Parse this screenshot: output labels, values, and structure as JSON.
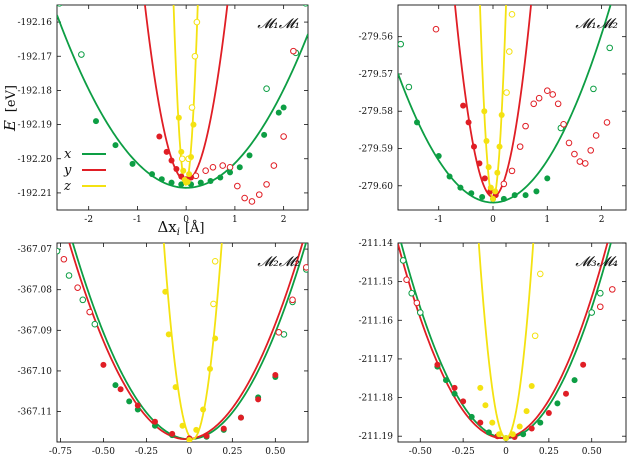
{
  "figure": {
    "ylabel_symbol": "E",
    "ylabel_unit": "[eV]",
    "xlabel_symbol": "Δx",
    "xlabel_sub": "i",
    "xlabel_unit": "[Å]"
  },
  "legend": [
    {
      "label": "x",
      "color": "#0d9e44"
    },
    {
      "label": "y",
      "color": "#e01e25"
    },
    {
      "label": "z",
      "color": "#f4e211"
    }
  ],
  "chart_data": [
    {
      "type": "scatter",
      "title": "𝓜₁𝓜₁",
      "xlim": [
        -2.65,
        2.5
      ],
      "ylim": [
        -192.215,
        -192.155
      ],
      "xticks": [
        -2,
        -1,
        0,
        1,
        2
      ],
      "xtick_labels": [
        "-2",
        "-1",
        "0",
        "1",
        "2"
      ],
      "yticks": [
        -192.16,
        -192.17,
        -192.18,
        -192.19,
        -192.2,
        -192.21
      ],
      "ytick_labels": [
        "-192.16",
        "-192.17",
        "-192.18",
        "-192.19",
        "-192.20",
        "-192.21"
      ],
      "fits": [
        {
          "series": "x",
          "x0": 0.0,
          "e0": -192.2085,
          "k": 0.0072
        },
        {
          "series": "y",
          "x0": 0.0,
          "e0": -192.2065,
          "k": 0.072
        },
        {
          "series": "z",
          "x0": -0.01,
          "e0": -192.2075,
          "k": 0.85
        }
      ],
      "filled": {
        "x": [
          [
            -1.85,
            -192.189
          ],
          [
            -1.45,
            -192.196
          ],
          [
            -1.1,
            -192.2015
          ],
          [
            -0.7,
            -192.2045
          ],
          [
            -0.5,
            -192.206
          ],
          [
            -0.3,
            -192.207
          ],
          [
            -0.1,
            -192.2075
          ],
          [
            0.1,
            -192.2075
          ],
          [
            0.3,
            -192.207
          ],
          [
            0.5,
            -192.2065
          ],
          [
            0.7,
            -192.2055
          ],
          [
            0.9,
            -192.204
          ],
          [
            1.1,
            -192.2025
          ],
          [
            1.3,
            -192.199
          ],
          [
            1.6,
            -192.193
          ],
          [
            1.9,
            -192.1865
          ],
          [
            2.0,
            -192.185
          ]
        ],
        "y": [
          [
            -0.55,
            -192.1935
          ],
          [
            -0.4,
            -192.198
          ],
          [
            -0.3,
            -192.2005
          ],
          [
            -0.2,
            -192.203
          ],
          [
            -0.1,
            -192.2052
          ],
          [
            0.0,
            -192.206
          ],
          [
            0.1,
            -192.2055
          ]
        ],
        "z": [
          [
            -0.15,
            -192.188
          ],
          [
            -0.1,
            -192.198
          ],
          [
            -0.06,
            -192.2035
          ],
          [
            -0.03,
            -192.2062
          ],
          [
            0.0,
            -192.207
          ],
          [
            0.03,
            -192.2068
          ],
          [
            0.06,
            -192.2045
          ],
          [
            0.1,
            -192.1995
          ],
          [
            0.15,
            -192.19
          ]
        ]
      },
      "open": {
        "x": [
          [
            -2.6,
            -192.1545
          ],
          [
            -2.15,
            -192.1695
          ],
          [
            1.65,
            -192.1795
          ],
          [
            2.25,
            -192.169
          ],
          [
            2.45,
            -192.1545
          ]
        ],
        "y": [
          [
            0.2,
            -192.205
          ],
          [
            0.4,
            -192.2035
          ],
          [
            0.55,
            -192.2025
          ],
          [
            0.75,
            -192.202
          ],
          [
            0.9,
            -192.2025
          ],
          [
            1.05,
            -192.208
          ],
          [
            1.2,
            -192.2115
          ],
          [
            1.35,
            -192.2125
          ],
          [
            1.5,
            -192.2105
          ],
          [
            1.65,
            -192.2075
          ],
          [
            1.8,
            -192.202
          ],
          [
            2.0,
            -192.1935
          ],
          [
            2.2,
            -192.1685
          ]
        ],
        "z": [
          [
            -0.08,
            -192.2
          ],
          [
            0.05,
            -192.2
          ],
          [
            0.12,
            -192.185
          ],
          [
            0.18,
            -192.17
          ],
          [
            0.22,
            -192.16
          ]
        ]
      }
    },
    {
      "type": "scatter",
      "title": "𝓜₁𝓜₂",
      "xlim": [
        -1.75,
        2.45
      ],
      "ylim": [
        -279.6065,
        -279.5515
      ],
      "xticks": [
        -1,
        0,
        1,
        2
      ],
      "xtick_labels": [
        "-1",
        "0",
        "1",
        "2"
      ],
      "yticks": [
        -279.56,
        -279.57,
        -279.58,
        -279.59,
        -279.6
      ],
      "ytick_labels": [
        "-279.56",
        "-279.57",
        "-279.58",
        "-279.59",
        "-279.60"
      ],
      "fits": [
        {
          "series": "x",
          "x0": 0.0,
          "e0": -279.6045,
          "k": 0.0113
        },
        {
          "series": "y",
          "x0": 0.0,
          "e0": -279.603,
          "k": 0.105
        },
        {
          "series": "z",
          "x0": 0.0,
          "e0": -279.6035,
          "k": 0.9
        }
      ],
      "filled": {
        "x": [
          [
            -1.4,
            -279.583
          ],
          [
            -1.0,
            -279.592
          ],
          [
            -0.8,
            -279.5975
          ],
          [
            -0.6,
            -279.6005
          ],
          [
            -0.4,
            -279.602
          ],
          [
            -0.2,
            -279.603
          ],
          [
            0.0,
            -279.6035
          ],
          [
            0.2,
            -279.6035
          ],
          [
            0.4,
            -279.6025
          ],
          [
            0.6,
            -279.6025
          ],
          [
            0.8,
            -279.6015
          ],
          [
            1.0,
            -279.598
          ]
        ],
        "y": [
          [
            -0.55,
            -279.5785
          ],
          [
            -0.45,
            -279.583
          ],
          [
            -0.35,
            -279.5895
          ],
          [
            -0.25,
            -279.594
          ],
          [
            -0.15,
            -279.598
          ],
          [
            -0.05,
            -279.6015
          ],
          [
            0.05,
            -279.6025
          ]
        ],
        "z": [
          [
            -0.16,
            -279.58
          ],
          [
            -0.12,
            -279.588
          ],
          [
            -0.08,
            -279.595
          ],
          [
            -0.04,
            -279.6005
          ],
          [
            0.0,
            -279.6035
          ],
          [
            0.04,
            -279.6015
          ],
          [
            0.08,
            -279.5965
          ],
          [
            0.12,
            -279.5895
          ],
          [
            0.16,
            -279.581
          ]
        ]
      },
      "open": {
        "x": [
          [
            -1.7,
            -279.562
          ],
          [
            -1.55,
            -279.5735
          ],
          [
            1.25,
            -279.5845
          ],
          [
            1.85,
            -279.574
          ],
          [
            2.15,
            -279.563
          ]
        ],
        "y": [
          [
            0.2,
            -279.5995
          ],
          [
            0.35,
            -279.596
          ],
          [
            0.5,
            -279.5895
          ],
          [
            0.6,
            -279.584
          ],
          [
            0.75,
            -279.578
          ],
          [
            0.85,
            -279.5765
          ],
          [
            1.0,
            -279.5745
          ],
          [
            1.1,
            -279.5755
          ],
          [
            1.2,
            -279.578
          ],
          [
            1.3,
            -279.5835
          ],
          [
            1.4,
            -279.5885
          ],
          [
            1.5,
            -279.5915
          ],
          [
            1.6,
            -279.5935
          ],
          [
            1.7,
            -279.594
          ],
          [
            1.8,
            -279.5905
          ],
          [
            1.9,
            -279.5865
          ],
          [
            2.1,
            -279.583
          ],
          [
            -1.05,
            -279.558
          ]
        ],
        "z": [
          [
            0.25,
            -279.575
          ],
          [
            0.3,
            -279.564
          ],
          [
            0.35,
            -279.554
          ]
        ]
      }
    },
    {
      "type": "scatter",
      "title": "𝓜₂𝓜₂",
      "xlim": [
        -0.77,
        0.69
      ],
      "ylim": [
        -367.1175,
        -367.0685
      ],
      "xticks": [
        -0.75,
        -0.5,
        -0.25,
        0.0,
        0.25,
        0.5
      ],
      "xtick_labels": [
        "-0.75",
        "-0.50",
        "-0.25",
        "0",
        "0.25",
        "0.50"
      ],
      "yticks": [
        -367.07,
        -367.08,
        -367.09,
        -367.1,
        -367.11
      ],
      "ytick_labels": [
        "-367.07",
        "-367.08",
        "-367.09",
        "-367.10",
        "-367.11"
      ],
      "fits": [
        {
          "series": "x",
          "x0": 0.0,
          "e0": -367.1168,
          "k": 0.105
        },
        {
          "series": "y",
          "x0": -0.02,
          "e0": -367.1168,
          "k": 0.105
        },
        {
          "series": "z",
          "x0": 0.02,
          "e0": -367.1168,
          "k": 1.7
        }
      ],
      "filled": {
        "x": [
          [
            -0.43,
            -367.1035
          ],
          [
            -0.35,
            -367.1075
          ],
          [
            -0.3,
            -367.1095
          ],
          [
            -0.2,
            -367.1135
          ],
          [
            -0.1,
            -367.1158
          ],
          [
            0.0,
            -367.1168
          ],
          [
            0.1,
            -367.1162
          ],
          [
            0.2,
            -367.1145
          ],
          [
            0.3,
            -367.1115
          ],
          [
            0.4,
            -367.1065
          ],
          [
            0.5,
            -367.1015
          ]
        ],
        "y": [
          [
            -0.5,
            -367.0985
          ],
          [
            -0.4,
            -367.1045
          ],
          [
            -0.3,
            -367.1085
          ],
          [
            -0.2,
            -367.1125
          ],
          [
            -0.1,
            -367.1155
          ],
          [
            0.0,
            -367.1166
          ],
          [
            0.1,
            -367.116
          ],
          [
            0.2,
            -367.1142
          ],
          [
            0.3,
            -367.1115
          ],
          [
            0.4,
            -367.107
          ],
          [
            0.5,
            -367.101
          ]
        ],
        "z": [
          [
            -0.14,
            -367.0805
          ],
          [
            -0.12,
            -367.091
          ],
          [
            -0.08,
            -367.104
          ],
          [
            -0.04,
            -367.1135
          ],
          [
            0.0,
            -367.117
          ],
          [
            0.04,
            -367.1145
          ],
          [
            0.08,
            -367.1095
          ],
          [
            0.12,
            -367.0995
          ],
          [
            0.15,
            -367.092
          ]
        ]
      },
      "open": {
        "x": [
          [
            -0.77,
            -367.0705
          ],
          [
            -0.7,
            -367.0765
          ],
          [
            -0.62,
            -367.0825
          ],
          [
            -0.55,
            -367.0885
          ],
          [
            0.55,
            -367.091
          ],
          [
            0.6,
            -367.083
          ],
          [
            0.68,
            -367.075
          ]
        ],
        "y": [
          [
            -0.73,
            -367.0725
          ],
          [
            -0.65,
            -367.0795
          ],
          [
            -0.58,
            -367.0855
          ],
          [
            0.52,
            -367.0905
          ],
          [
            0.6,
            -367.0825
          ],
          [
            0.68,
            -367.0745
          ]
        ],
        "z": [
          [
            0.14,
            -367.0835
          ],
          [
            0.15,
            -367.073
          ]
        ]
      }
    },
    {
      "type": "scatter",
      "title": "𝓜₃𝓜₄",
      "xlim": [
        -0.63,
        0.7
      ],
      "ylim": [
        -211.1915,
        -211.14
      ],
      "xticks": [
        -0.5,
        -0.25,
        0.0,
        0.25,
        0.5
      ],
      "xtick_labels": [
        "-0.50",
        "-0.25",
        "0",
        "0.25",
        "0.50"
      ],
      "yticks": [
        -211.14,
        -211.15,
        -211.16,
        -211.17,
        -211.18,
        -211.19
      ],
      "ytick_labels": [
        "-211.14",
        "-211.15",
        "-211.16",
        "-211.17",
        "-211.18",
        "-211.19"
      ],
      "fits": [
        {
          "series": "x",
          "x0": 0.0,
          "e0": -211.1905,
          "k": 0.135
        },
        {
          "series": "y",
          "x0": -0.02,
          "e0": -211.1905,
          "k": 0.135
        },
        {
          "series": "z",
          "x0": 0.0,
          "e0": -211.1905,
          "k": 2.0
        }
      ],
      "filled": {
        "x": [
          [
            -0.4,
            -211.172
          ],
          [
            -0.35,
            -211.1755
          ],
          [
            -0.3,
            -211.179
          ],
          [
            -0.2,
            -211.185
          ],
          [
            -0.1,
            -211.189
          ],
          [
            0.0,
            -211.1905
          ],
          [
            0.1,
            -211.1895
          ],
          [
            0.2,
            -211.1865
          ],
          [
            0.3,
            -211.1815
          ],
          [
            0.4,
            -211.1755
          ]
        ],
        "y": [
          [
            -0.4,
            -211.1715
          ],
          [
            -0.3,
            -211.1775
          ],
          [
            -0.25,
            -211.181
          ],
          [
            -0.15,
            -211.1865
          ],
          [
            -0.05,
            -211.19
          ],
          [
            0.05,
            -211.1902
          ],
          [
            0.15,
            -211.188
          ],
          [
            0.25,
            -211.184
          ],
          [
            0.35,
            -211.179
          ],
          [
            0.45,
            -211.1715
          ]
        ],
        "z": [
          [
            -0.15,
            -211.1775
          ],
          [
            -0.12,
            -211.182
          ],
          [
            -0.08,
            -211.1865
          ],
          [
            -0.04,
            -211.1895
          ],
          [
            0.0,
            -211.1905
          ],
          [
            0.04,
            -211.1895
          ],
          [
            0.08,
            -211.1875
          ],
          [
            0.12,
            -211.1835
          ],
          [
            0.15,
            -211.177
          ]
        ]
      },
      "open": {
        "x": [
          [
            -0.6,
            -211.1445
          ],
          [
            -0.55,
            -211.153
          ],
          [
            -0.5,
            -211.158
          ],
          [
            0.5,
            -211.158
          ],
          [
            0.55,
            -211.153
          ]
        ],
        "y": [
          [
            -0.58,
            -211.1495
          ],
          [
            -0.52,
            -211.1555
          ],
          [
            0.55,
            -211.1565
          ],
          [
            0.62,
            -211.152
          ]
        ],
        "z": [
          [
            0.17,
            -211.164
          ],
          [
            0.2,
            -211.148
          ]
        ]
      }
    }
  ]
}
